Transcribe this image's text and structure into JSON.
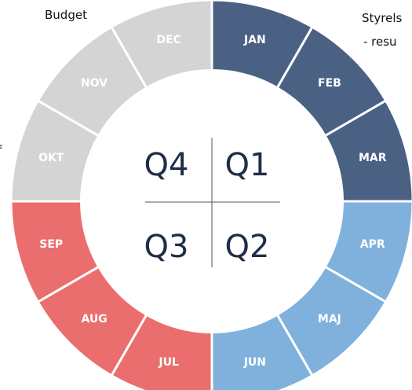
{
  "header": {
    "left": "Budget",
    "right_line1": "Styrels",
    "right_line2": "- resu",
    "left_edge": "f"
  },
  "months": [
    "JAN",
    "FEB",
    "MAR",
    "APR",
    "MAJ",
    "JUN",
    "JUL",
    "AUG",
    "SEP",
    "OKT",
    "NOV",
    "DEC"
  ],
  "quarters": [
    "Q1",
    "Q2",
    "Q3",
    "Q4"
  ]
}
